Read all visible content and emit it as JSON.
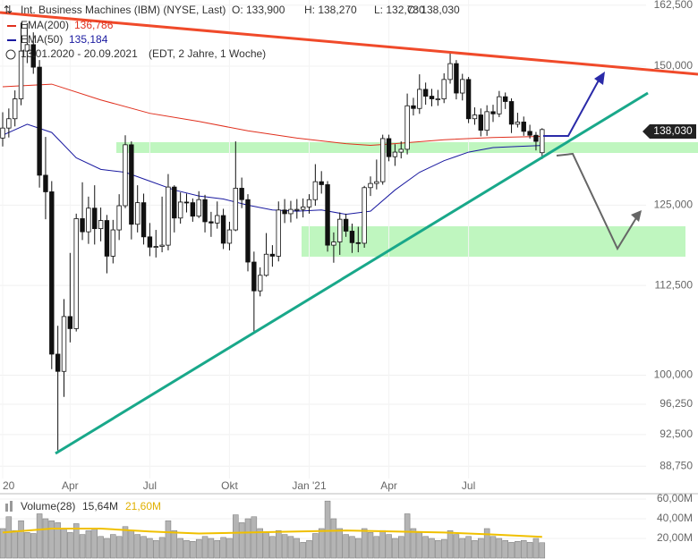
{
  "chart_data": {
    "type": "candlestick",
    "header": {
      "title": "Int. Business Machines (IBM) (NYSE, Last)",
      "open": "O: 133,900",
      "high": "H: 138,270",
      "low": "L: 132,780",
      "close": "C: 138,030",
      "period": "13.01.2020 - 20.09.2021",
      "info": "(EDT, 2 Jahre, 1 Woche)"
    },
    "last_price_label": "138,030",
    "log_scale": true,
    "ylim": [
      85.8,
      163.6
    ],
    "yticks": [
      {
        "value": 162.5,
        "label": "162,500"
      },
      {
        "value": 150,
        "label": "150,000"
      },
      {
        "value": 125,
        "label": "125,000"
      },
      {
        "value": 112.5,
        "label": "112,500"
      },
      {
        "value": 100,
        "label": "100,000"
      },
      {
        "value": 96.25,
        "label": "96,250"
      },
      {
        "value": 92.5,
        "label": "92,500"
      },
      {
        "value": 88.75,
        "label": "88,750"
      }
    ],
    "xticks": [
      {
        "value": 0,
        "label": "20"
      },
      {
        "value": 11,
        "label": "Apr"
      },
      {
        "value": 24,
        "label": "Jul"
      },
      {
        "value": 37,
        "label": "Okt"
      },
      {
        "value": 50,
        "label": "Jan '21"
      },
      {
        "value": 63,
        "label": "Apr"
      },
      {
        "value": 76,
        "label": "Jul"
      }
    ],
    "open": [
      136.5,
      138.3,
      140,
      143.7,
      153,
      154.3,
      149.8,
      130,
      127.2,
      102.8,
      100.5,
      108,
      106.3,
      122.8,
      120.7,
      124.5,
      121.2,
      122.5,
      116.9,
      121,
      124.9,
      135.3,
      121.9,
      125.4,
      119.9,
      118.3,
      118.4,
      118.6,
      128,
      122.9,
      125.5,
      125.4,
      123.2,
      125.9,
      122.3,
      122.1,
      123.3,
      118.9,
      121,
      127.8,
      125.9,
      116,
      111.7,
      114,
      117.2,
      116.9,
      124.2,
      123.6,
      124.3,
      124.3,
      124.7,
      125.9,
      128.9,
      128.4,
      118.6,
      119.1,
      122.7,
      120.8,
      118.99,
      118.9,
      127.9,
      128.6,
      128.9,
      136.4,
      133.2,
      134,
      134.5,
      142.4,
      141.9,
      145.5,
      144.2,
      143.7,
      143.7,
      147.4,
      150.5,
      144.8,
      147.4,
      140,
      140.7,
      137.9,
      141.3,
      140.9,
      144.1,
      143.2,
      139,
      139.4,
      137.7,
      137,
      133.9
    ],
    "high": [
      141.2,
      141.9,
      145.3,
      158.8,
      158.7,
      156.8,
      151.2,
      136.7,
      129,
      106.7,
      110.5,
      117.4,
      123.6,
      128.8,
      126.4,
      128.3,
      124.6,
      123.4,
      122.6,
      126.8,
      137,
      135.9,
      128.3,
      126.9,
      122.1,
      121,
      126.4,
      130.2,
      128.3,
      127.1,
      126.9,
      126.1,
      127.3,
      126.7,
      123.9,
      125.6,
      124.4,
      122.3,
      135.9,
      129.6,
      126.8,
      117.6,
      115.2,
      120.5,
      118.6,
      125.6,
      126,
      125.7,
      126,
      126.1,
      126.8,
      131.9,
      130.7,
      129,
      120.6,
      123.8,
      123.6,
      122,
      121.5,
      128.2,
      129.8,
      132.7,
      137.1,
      137.1,
      135.4,
      135.9,
      144.7,
      143.9,
      148.4,
      146.8,
      145.6,
      145.4,
      148.6,
      152.8,
      151.2,
      148.5,
      147.9,
      142.1,
      141.9,
      142.5,
      142.6,
      145.2,
      144.9,
      143.8,
      141.1,
      140.4,
      138.9,
      137.6,
      138.27
    ],
    "low": [
      135,
      136.6,
      138.6,
      142.5,
      150.6,
      148.5,
      127.9,
      122.7,
      100.8,
      90.6,
      97.2,
      104.4,
      105.9,
      119.4,
      118.8,
      118.7,
      119.2,
      114.3,
      115.8,
      119.4,
      124.5,
      119.5,
      120.6,
      118.7,
      116.9,
      116.7,
      117.5,
      117.8,
      120.6,
      122,
      123.8,
      122.3,
      122.9,
      120.6,
      119.9,
      121.2,
      118,
      117.8,
      120.8,
      124.5,
      114.6,
      105.9,
      110.9,
      113.8,
      115.3,
      116.1,
      122.1,
      122.2,
      122.8,
      123,
      123.6,
      124.9,
      126.9,
      117.6,
      115.9,
      117.1,
      119.9,
      117.4,
      117.5,
      118.2,
      126.5,
      127.6,
      128.4,
      132.4,
      131.6,
      132.9,
      133.6,
      140.6,
      140.9,
      142.6,
      142.3,
      142.4,
      142.9,
      146.6,
      143.6,
      143.4,
      139.2,
      138.9,
      136.8,
      136.9,
      139.4,
      140.3,
      141.8,
      137.4,
      138.4,
      136.9,
      136.4,
      134.3,
      132.78
    ],
    "close": [
      138.3,
      140,
      143.7,
      153,
      154.3,
      149.8,
      130,
      127.2,
      102.8,
      100.5,
      108,
      106.3,
      122.8,
      120.7,
      124.5,
      121.2,
      122.5,
      116.9,
      121,
      124.9,
      135.3,
      121.9,
      125.4,
      119.9,
      118.3,
      118.4,
      118.6,
      128,
      122.9,
      125.5,
      125.4,
      123.2,
      125.9,
      122.3,
      122.1,
      123.3,
      118.9,
      121,
      127.8,
      125.9,
      116,
      111.7,
      114,
      117.2,
      116.9,
      124.2,
      123.6,
      124.3,
      124.3,
      124.7,
      125.9,
      128.9,
      128.4,
      118.6,
      119.1,
      122.7,
      120.8,
      118.99,
      118.9,
      127.9,
      128.6,
      128.9,
      136.4,
      133.2,
      134,
      134.5,
      142.4,
      141.9,
      145.5,
      144.2,
      143.7,
      143.7,
      147.4,
      150.5,
      144.8,
      147.4,
      140,
      140.7,
      137.9,
      141.3,
      140.9,
      144.1,
      143.2,
      139,
      139.4,
      137.7,
      137,
      135.9,
      138.03
    ],
    "overlays": [
      {
        "name": "EMA(200)",
        "value_label": "136,786",
        "color": "#e0301e",
        "x": [
          0,
          8,
          16,
          24,
          32,
          40,
          48,
          56,
          60,
          64,
          72,
          80,
          88
        ],
        "values": [
          146,
          146.5,
          143.5,
          141,
          139.5,
          137.8,
          136.5,
          135.5,
          135.2,
          135.5,
          136.2,
          136.6,
          136.786
        ]
      },
      {
        "name": "EMA(50)",
        "value_label": "135,184",
        "color": "#1a1aa0",
        "x": [
          0,
          4,
          8,
          12,
          16,
          20,
          24,
          28,
          32,
          36,
          40,
          44,
          48,
          52,
          56,
          60,
          64,
          68,
          72,
          76,
          80,
          84,
          88
        ],
        "values": [
          137,
          139,
          137.5,
          133,
          131,
          130.5,
          129,
          127.5,
          126.5,
          126,
          125,
          124.2,
          124,
          124.2,
          123.5,
          124,
          127.5,
          130.5,
          132.5,
          134,
          134.8,
          135,
          135.184
        ]
      }
    ],
    "volume": {
      "name": "Volume(28)",
      "value_label": "15,64M",
      "color": "#b4b4b4",
      "ylim": [
        0,
        64.5
      ],
      "yticks": [
        {
          "value": 60,
          "label": "60,00M"
        },
        {
          "value": 40,
          "label": "40,00M"
        },
        {
          "value": 20,
          "label": "20,00M"
        }
      ],
      "values": [
        30,
        42,
        28,
        38,
        26,
        25,
        45,
        40,
        38,
        36,
        30,
        26,
        35,
        24,
        28,
        30,
        22,
        20,
        24,
        22,
        32,
        28,
        24,
        22,
        20,
        18,
        21,
        38,
        28,
        20,
        18,
        17,
        19,
        22,
        20,
        18,
        21,
        20,
        44,
        36,
        40,
        42,
        30,
        26,
        22,
        28,
        24,
        22,
        20,
        16,
        18,
        25,
        30,
        58,
        40,
        30,
        24,
        22,
        20,
        30,
        26,
        22,
        28,
        24,
        20,
        22,
        45,
        30,
        26,
        22,
        20,
        18,
        19,
        28,
        24,
        20,
        22,
        18,
        20,
        30,
        22,
        20,
        18,
        16,
        17,
        18,
        16,
        20,
        15.64
      ],
      "average": {
        "value_label": "21,60M",
        "color": "#f0c000",
        "x": [
          0,
          8,
          16,
          24,
          32,
          40,
          48,
          56,
          64,
          72,
          80,
          88
        ],
        "values": [
          26,
          30,
          30,
          27,
          25,
          26,
          27,
          28,
          27,
          26,
          24,
          21.6
        ]
      }
    }
  }
}
